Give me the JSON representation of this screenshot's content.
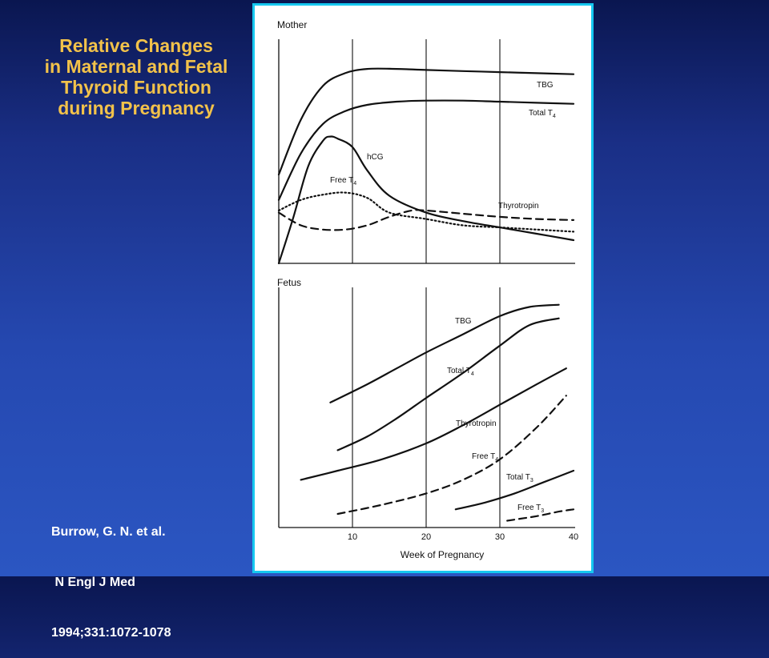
{
  "slide": {
    "title_lines": [
      "Relative Changes",
      "in Maternal and Fetal",
      "Thyroid Function",
      "during Pregnancy"
    ],
    "citation_lines": [
      "Burrow, G. N. et al.",
      " N Engl J Med",
      "1994;331:1072-1078"
    ],
    "colors": {
      "title": "#f2c24a",
      "frame_border": "#16c8f0",
      "background_top": "#0a1650",
      "background_bottom": "#2b56c2"
    }
  },
  "chart_data": [
    {
      "type": "line",
      "panel_label": "Mother",
      "xlabel": "",
      "ylabel": "",
      "xlim": [
        0,
        40
      ],
      "ylim": [
        0,
        100
      ],
      "grid_x": [
        10,
        20,
        30
      ],
      "series": [
        {
          "name": "TBG",
          "style": "solid",
          "points": [
            [
              0,
              42
            ],
            [
              3,
              68
            ],
            [
              6,
              84
            ],
            [
              9,
              90
            ],
            [
              12,
              92
            ],
            [
              16,
              92
            ],
            [
              20,
              91.5
            ],
            [
              25,
              91
            ],
            [
              30,
              90.5
            ],
            [
              35,
              90
            ],
            [
              40,
              89.5
            ]
          ]
        },
        {
          "name": "Total T4",
          "style": "solid",
          "points": [
            [
              0,
              30
            ],
            [
              3,
              52
            ],
            [
              6,
              66
            ],
            [
              9,
              72
            ],
            [
              12,
              75
            ],
            [
              16,
              76.5
            ],
            [
              20,
              77
            ],
            [
              25,
              77
            ],
            [
              30,
              76.5
            ],
            [
              35,
              76
            ],
            [
              40,
              75.5
            ]
          ]
        },
        {
          "name": "hCG",
          "style": "solid",
          "points": [
            [
              0,
              0
            ],
            [
              2,
              22
            ],
            [
              4,
              46
            ],
            [
              6,
              58
            ],
            [
              7,
              60
            ],
            [
              8,
              59
            ],
            [
              10,
              55
            ],
            [
              12,
              44
            ],
            [
              15,
              32
            ],
            [
              20,
              24
            ],
            [
              25,
              20
            ],
            [
              30,
              17
            ],
            [
              35,
              14
            ],
            [
              40,
              11
            ]
          ]
        },
        {
          "name": "Free T4",
          "style": "dotted",
          "points": [
            [
              0,
              25
            ],
            [
              3,
              30
            ],
            [
              6,
              32.5
            ],
            [
              9,
              33.5
            ],
            [
              12,
              31
            ],
            [
              15,
              24
            ],
            [
              20,
              21
            ],
            [
              25,
              18
            ],
            [
              30,
              17
            ],
            [
              35,
              16
            ],
            [
              40,
              15
            ]
          ]
        },
        {
          "name": "Thyrotropin",
          "style": "dashed",
          "points": [
            [
              0,
              24
            ],
            [
              3,
              18
            ],
            [
              6,
              16
            ],
            [
              9,
              16
            ],
            [
              12,
              18
            ],
            [
              15,
              22
            ],
            [
              18,
              25
            ],
            [
              20,
              25
            ],
            [
              25,
              23.5
            ],
            [
              30,
              22
            ],
            [
              35,
              21
            ],
            [
              40,
              20.5
            ]
          ]
        }
      ]
    },
    {
      "type": "line",
      "panel_label": "Fetus",
      "xlabel": "Week of Pregnancy",
      "ylabel": "",
      "xlim": [
        0,
        40
      ],
      "ylim": [
        0,
        100
      ],
      "xticks": [
        10,
        20,
        30,
        40
      ],
      "grid_x": [
        10,
        20,
        30
      ],
      "series": [
        {
          "name": "TBG",
          "style": "solid",
          "points": [
            [
              7,
              55
            ],
            [
              12,
              63
            ],
            [
              16,
              70
            ],
            [
              20,
              77
            ],
            [
              25,
              85
            ],
            [
              30,
              93
            ],
            [
              34,
              97
            ],
            [
              38,
              98
            ]
          ]
        },
        {
          "name": "Total T4",
          "style": "solid",
          "points": [
            [
              8,
              34
            ],
            [
              12,
              40
            ],
            [
              16,
              48
            ],
            [
              20,
              57
            ],
            [
              25,
              68
            ],
            [
              30,
              80
            ],
            [
              34,
              89
            ],
            [
              38,
              92
            ]
          ]
        },
        {
          "name": "Thyrotropin",
          "style": "solid",
          "points": [
            [
              3,
              21
            ],
            [
              8,
              25
            ],
            [
              14,
              30
            ],
            [
              20,
              37
            ],
            [
              25,
              45
            ],
            [
              30,
              54
            ],
            [
              35,
              63
            ],
            [
              39,
              70
            ]
          ]
        },
        {
          "name": "Free T4",
          "style": "dashed",
          "points": [
            [
              8,
              6
            ],
            [
              14,
              10
            ],
            [
              20,
              15
            ],
            [
              25,
              21
            ],
            [
              30,
              30
            ],
            [
              35,
              44
            ],
            [
              39,
              58
            ]
          ]
        },
        {
          "name": "Total T3",
          "style": "solid",
          "points": [
            [
              24,
              8
            ],
            [
              28,
              11
            ],
            [
              32,
              15
            ],
            [
              36,
              20
            ],
            [
              40,
              25
            ]
          ]
        },
        {
          "name": "Free T3",
          "style": "dashed",
          "points": [
            [
              31,
              3
            ],
            [
              35,
              5
            ],
            [
              38,
              7
            ],
            [
              40,
              8
            ]
          ]
        }
      ]
    }
  ]
}
